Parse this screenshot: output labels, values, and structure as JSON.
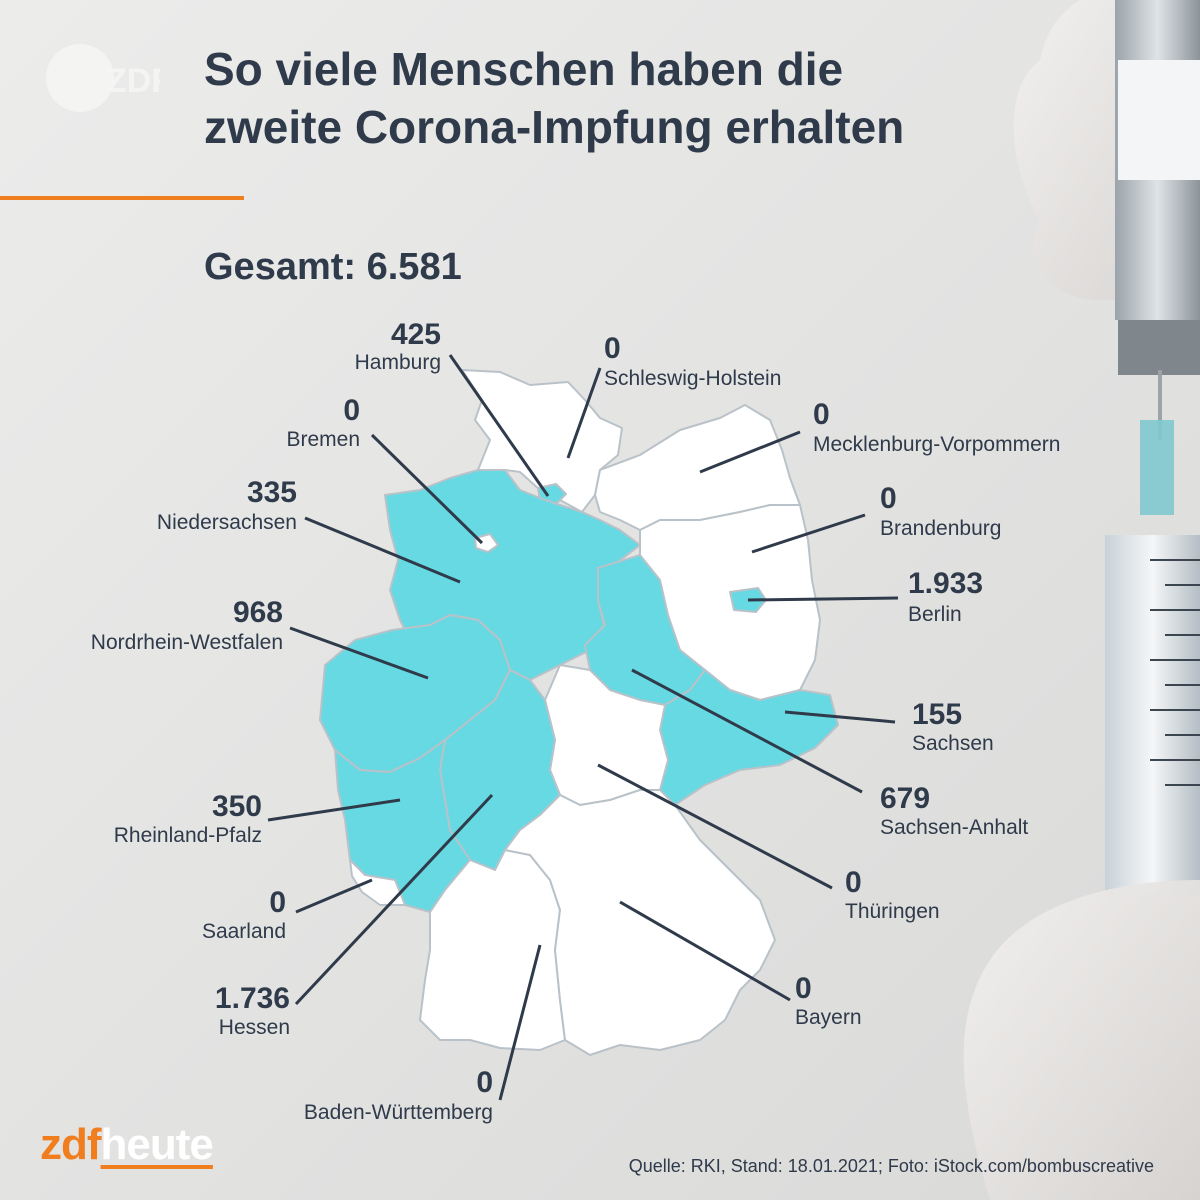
{
  "brand": {
    "logo_text": "ZDF",
    "wordmark_left": "zdf",
    "wordmark_right": "heute"
  },
  "title": {
    "line1": "So viele Menschen haben die",
    "line2": "zweite Corona-Impfung erhalten"
  },
  "total": "Gesamt: 6.581",
  "source": "Quelle: RKI, Stand: 18.01.2021; Foto: iStock.com/bombuscreative",
  "colors": {
    "highlight": "#66d9e3",
    "zero": "#ffffff",
    "accent": "#f07d1e",
    "text": "#2f3a4a"
  },
  "states": [
    {
      "name": "Hamburg",
      "value": "425"
    },
    {
      "name": "Schleswig-Holstein",
      "value": "0"
    },
    {
      "name": "Bremen",
      "value": "0"
    },
    {
      "name": "Mecklenburg-Vorpommern",
      "value": "0"
    },
    {
      "name": "Niedersachsen",
      "value": "335"
    },
    {
      "name": "Brandenburg",
      "value": "0"
    },
    {
      "name": "Berlin",
      "value": "1.933"
    },
    {
      "name": "Nordrhein-Westfalen",
      "value": "968"
    },
    {
      "name": "Sachsen",
      "value": "155"
    },
    {
      "name": "Rheinland-Pfalz",
      "value": "350"
    },
    {
      "name": "Sachsen-Anhalt",
      "value": "679"
    },
    {
      "name": "Saarland",
      "value": "0"
    },
    {
      "name": "Thüringen",
      "value": "0"
    },
    {
      "name": "Hessen",
      "value": "1.736"
    },
    {
      "name": "Bayern",
      "value": "0"
    },
    {
      "name": "Baden-Württemberg",
      "value": "0"
    }
  ]
}
